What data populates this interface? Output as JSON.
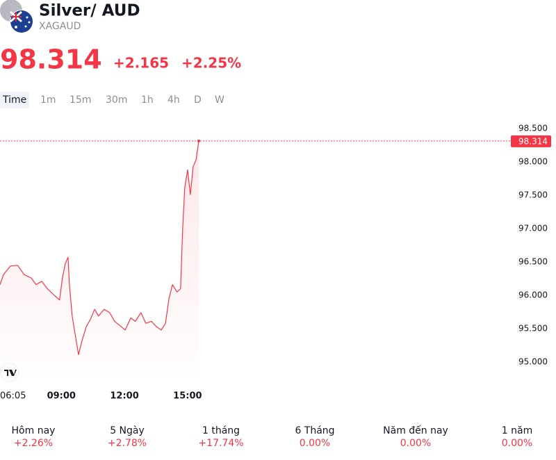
{
  "header": {
    "title": "Silver/ AUD",
    "symbol": "XAGAUD"
  },
  "quote": {
    "price": 98.314,
    "change": "+2.165",
    "change_percent": "+2.25%"
  },
  "tabs": [
    "Time",
    "1m",
    "15m",
    "30m",
    "1h",
    "4h",
    "D",
    "W"
  ],
  "chart_data": {
    "type": "line",
    "color": "#f23645",
    "x": [
      "06:05",
      "06:15",
      "06:35",
      "06:55",
      "07:14",
      "07:34",
      "07:48",
      "08:04",
      "08:20",
      "08:40",
      "08:55",
      "09:03",
      "09:11",
      "09:19",
      "09:23",
      "09:31",
      "09:39",
      "09:49",
      "09:59",
      "10:11",
      "10:23",
      "10:35",
      "10:46",
      "11:02",
      "11:18",
      "11:32",
      "11:46",
      "12:02",
      "12:18",
      "12:31",
      "12:47",
      "13:01",
      "13:17",
      "13:31",
      "13:45",
      "13:57",
      "14:07",
      "14:17",
      "14:30",
      "14:40",
      "14:46",
      "14:52",
      "15:00",
      "15:08",
      "15:16",
      "15:24",
      "15:32"
    ],
    "values": [
      96.16,
      96.31,
      96.44,
      96.45,
      96.31,
      96.26,
      96.16,
      96.21,
      96.1,
      96.0,
      95.93,
      96.26,
      96.47,
      96.57,
      96.16,
      95.69,
      95.43,
      95.11,
      95.32,
      95.53,
      95.64,
      95.79,
      95.69,
      95.79,
      95.74,
      95.61,
      95.55,
      95.48,
      95.66,
      95.61,
      95.74,
      95.58,
      95.61,
      95.53,
      95.48,
      95.58,
      95.95,
      96.16,
      96.05,
      96.1,
      96.99,
      97.61,
      97.88,
      97.51,
      97.93,
      98.03,
      98.314
    ],
    "xlim": [
      "06:05",
      "15:32"
    ],
    "xticks": [
      "06:05",
      "09:00",
      "12:00",
      "15:00"
    ],
    "ylim": [
      94.8,
      98.6
    ],
    "yticks": [
      {
        "value": 95,
        "label": "95.000"
      },
      {
        "value": 95.5,
        "label": "95.500"
      },
      {
        "value": 96,
        "label": "96.000"
      },
      {
        "value": 96.5,
        "label": "96.500"
      },
      {
        "value": 97,
        "label": "97.000"
      },
      {
        "value": 97.5,
        "label": "97.500"
      },
      {
        "value": 98,
        "label": "98.000"
      },
      {
        "value": 98.5,
        "label": "98.500"
      }
    ]
  },
  "performance": [
    {
      "period": "Hôm nay",
      "change": "+2.26%"
    },
    {
      "period": "5 Ngày",
      "change": "+2.78%"
    },
    {
      "period": "1 tháng",
      "change": "+17.74%"
    },
    {
      "period": "6 Tháng",
      "change": "0.00%"
    },
    {
      "period": "Năm đến nay",
      "change": "0.00%"
    },
    {
      "period": "1 năm",
      "change": "0.00%"
    }
  ]
}
